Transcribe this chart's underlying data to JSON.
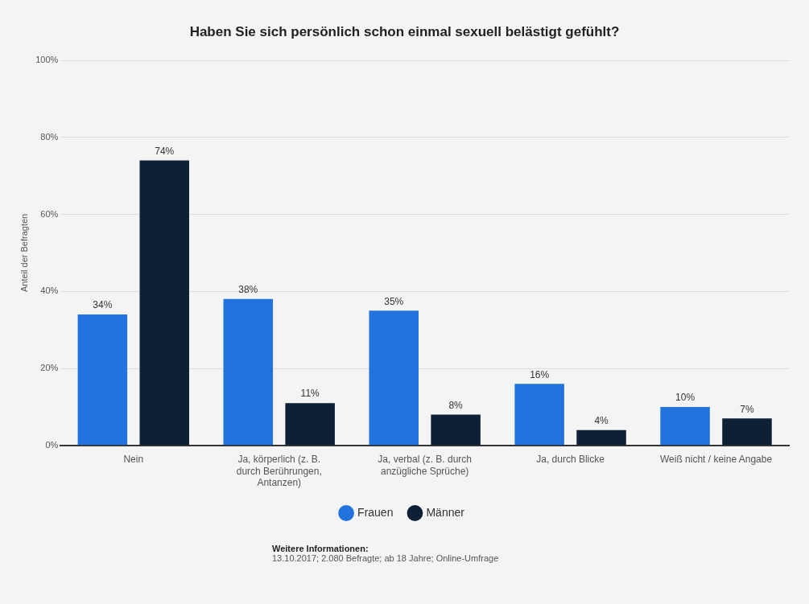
{
  "chart_data": {
    "type": "bar",
    "title": "Haben Sie sich persönlich schon einmal sexuell belästigt gefühlt?",
    "ylabel": "Anteil der Befragten",
    "categories": [
      "Nein",
      "Ja, körperlich (z. B. durch Berührungen, Antanzen)",
      "Ja, verbal (z. B. durch anzügliche Sprüche)",
      "Ja, durch Blicke",
      "Weiß nicht / keine Angabe"
    ],
    "series": [
      {
        "name": "Frauen",
        "color": "#2373de",
        "values": [
          34,
          38,
          35,
          16,
          10
        ],
        "value_labels": [
          "34%",
          "38%",
          "35%",
          "16%",
          "10%"
        ]
      },
      {
        "name": "Männer",
        "color": "#0d2035",
        "values": [
          74,
          11,
          8,
          4,
          7
        ],
        "value_labels": [
          "74%",
          "11%",
          "8%",
          "4%",
          "7%"
        ]
      }
    ],
    "ylim": [
      0,
      100
    ],
    "yticks": [
      {
        "value": 0,
        "label": "0%"
      },
      {
        "value": 20,
        "label": "20%"
      },
      {
        "value": 40,
        "label": "40%"
      },
      {
        "value": 60,
        "label": "60%"
      },
      {
        "value": 80,
        "label": "80%"
      },
      {
        "value": 100,
        "label": "100%"
      }
    ],
    "grid": "y",
    "legend": "bottom",
    "annotations": [
      "Weitere Informationen:",
      "13.10.2017; 2.080 Befragte; ab 18 Jahre; Online-Umfrage"
    ]
  }
}
